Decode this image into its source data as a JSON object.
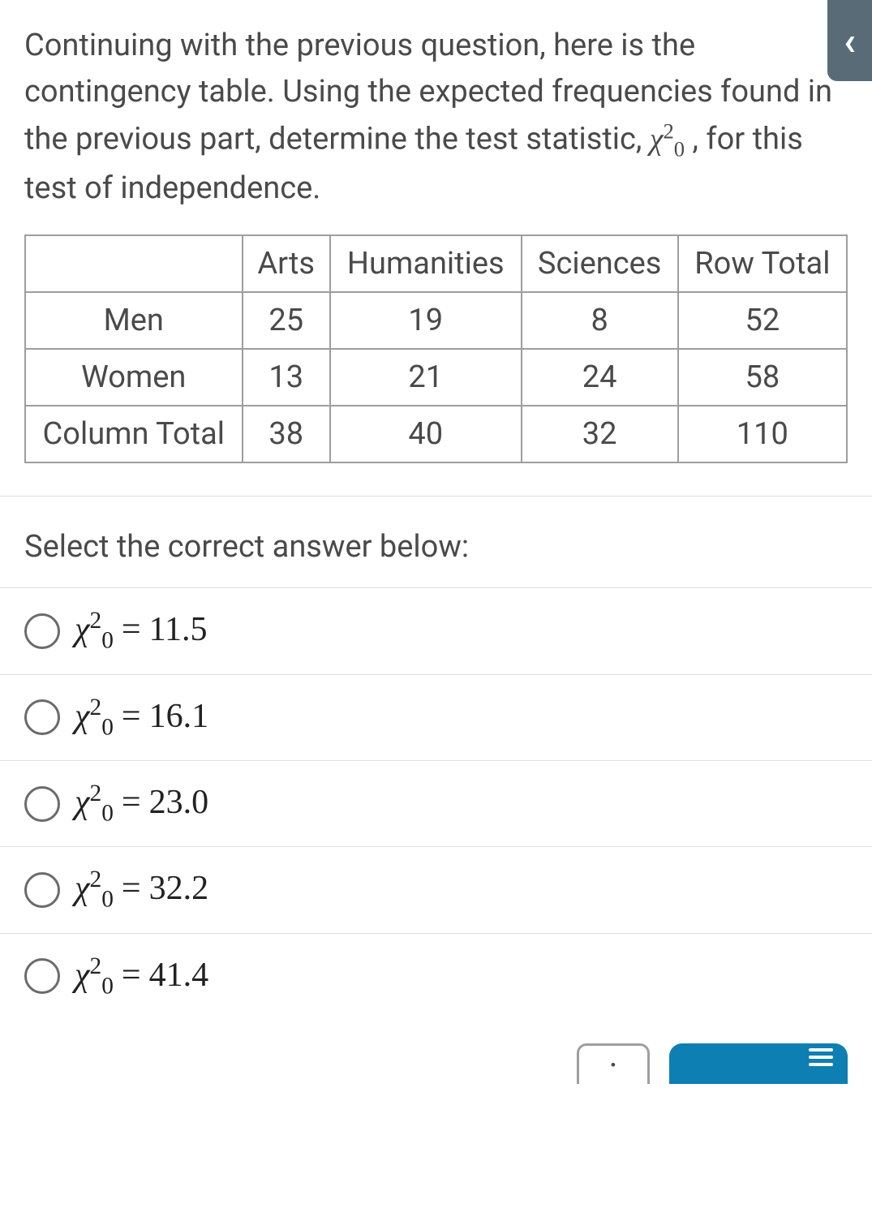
{
  "question": {
    "text_before_stat": "Continuing with the previous question, here is the contingency table. Using the expected frequencies found in the previous part, determine the test statistic, ",
    "stat_symbol": "χ",
    "stat_sub": "0",
    "stat_sup": "2",
    "text_after_stat": " , for this test of independence."
  },
  "table": {
    "headers": [
      "",
      "Arts",
      "Humanities",
      "Sciences",
      "Row Total"
    ],
    "rows": [
      {
        "label": "Men",
        "cells": [
          "25",
          "19",
          "8",
          "52"
        ]
      },
      {
        "label": "Women",
        "cells": [
          "13",
          "21",
          "24",
          "58"
        ]
      },
      {
        "label": "Column Total",
        "cells": [
          "38",
          "40",
          "32",
          "110"
        ]
      }
    ]
  },
  "prompt": "Select the correct answer below:",
  "options": [
    {
      "value": "11.5"
    },
    {
      "value": "16.1"
    },
    {
      "value": "23.0"
    },
    {
      "value": "32.2"
    },
    {
      "value": "41.4"
    }
  ],
  "colors": {
    "text": "#4a4a4a",
    "border": "#9e9e9e",
    "divider": "#e0e0e0",
    "side_tab_bg": "#5a6b78",
    "blue_tab_bg": "#0e7fb3",
    "radio_border": "#6b6b6b"
  },
  "side_tab_glyph": "‹",
  "dot_box_glyph": "·"
}
